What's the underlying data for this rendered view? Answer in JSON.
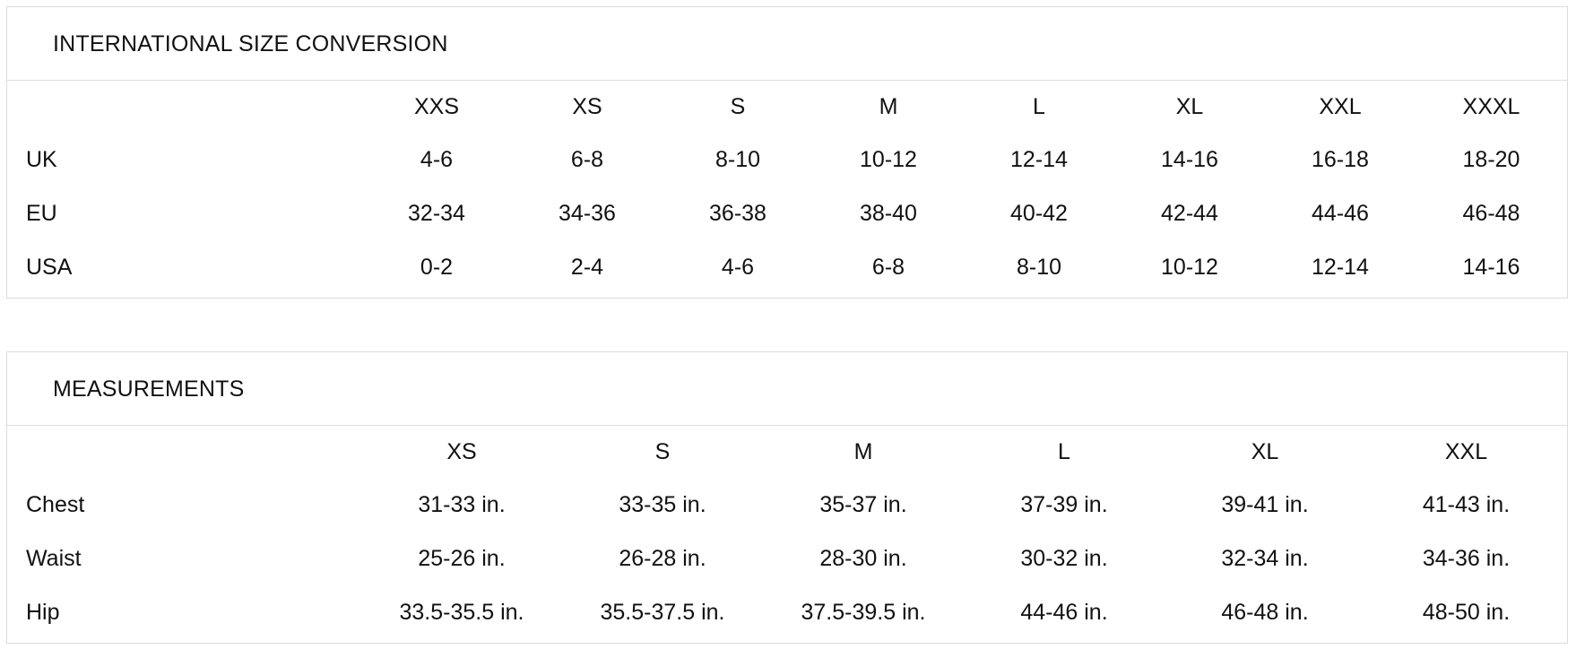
{
  "conversion": {
    "title": "INTERNATIONAL SIZE CONVERSION",
    "sizes": [
      "XXS",
      "XS",
      "S",
      "M",
      "L",
      "XL",
      "XXL",
      "XXXL"
    ],
    "rows": [
      {
        "label": "UK",
        "values": [
          "4-6",
          "6-8",
          "8-10",
          "10-12",
          "12-14",
          "14-16",
          "16-18",
          "18-20"
        ]
      },
      {
        "label": "EU",
        "values": [
          "32-34",
          "34-36",
          "36-38",
          "38-40",
          "40-42",
          "42-44",
          "44-46",
          "46-48"
        ]
      },
      {
        "label": "USA",
        "values": [
          "0-2",
          "2-4",
          "4-6",
          "6-8",
          "8-10",
          "10-12",
          "12-14",
          "14-16"
        ]
      }
    ]
  },
  "measurements": {
    "title": "MEASUREMENTS",
    "sizes": [
      "XS",
      "S",
      "M",
      "L",
      "XL",
      "XXL"
    ],
    "rows": [
      {
        "label": "Chest",
        "values": [
          "31-33 in.",
          "33-35 in.",
          "35-37 in.",
          "37-39 in.",
          "39-41 in.",
          "41-43 in."
        ]
      },
      {
        "label": "Waist",
        "values": [
          "25-26 in.",
          "26-28 in.",
          "28-30 in.",
          "30-32 in.",
          "32-34 in.",
          "34-36 in."
        ]
      },
      {
        "label": "Hip",
        "values": [
          "33.5-35.5 in.",
          "35.5-37.5 in.",
          "37.5-39.5 in.",
          "44-46 in.",
          "46-48 in.",
          "48-50 in."
        ]
      }
    ]
  }
}
